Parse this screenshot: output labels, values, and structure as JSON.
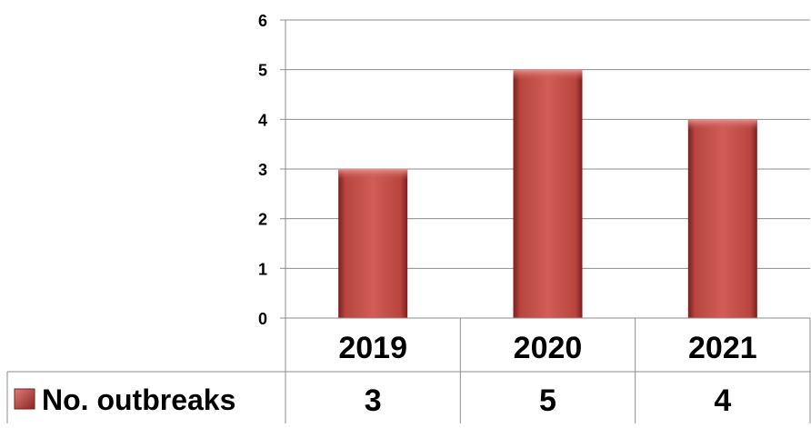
{
  "chart_data": {
    "type": "bar",
    "title": "",
    "xlabel": "",
    "ylabel": "",
    "categories": [
      "2019",
      "2020",
      "2021"
    ],
    "series": [
      {
        "name": "No. outbreaks",
        "values": [
          3,
          5,
          4
        ],
        "color": "#c0504d"
      }
    ],
    "ylim": [
      0,
      6
    ],
    "yticks": [
      "0",
      "1",
      "2",
      "3",
      "4",
      "5",
      "6"
    ],
    "grid": true,
    "legend": "data-table-left",
    "data_table": {
      "row_label": "No. outbreaks",
      "cells": [
        "3",
        "5",
        "4"
      ]
    }
  }
}
